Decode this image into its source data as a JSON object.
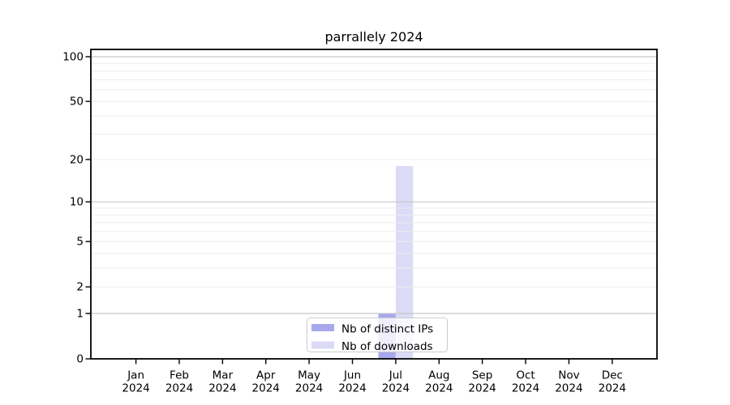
{
  "chart_data": {
    "type": "bar",
    "title": "parrallely 2024",
    "x": {
      "months": [
        "Jan",
        "Feb",
        "Mar",
        "Apr",
        "May",
        "Jun",
        "Jul",
        "Aug",
        "Sep",
        "Oct",
        "Nov",
        "Dec"
      ],
      "year": "2024"
    },
    "series": [
      {
        "name": "Nb of distinct IPs",
        "color": "#a8a8ec",
        "values": [
          0,
          0,
          0,
          0,
          0,
          0,
          1,
          0,
          0,
          0,
          0,
          0
        ]
      },
      {
        "name": "Nb of downloads",
        "color": "#dbdbf8",
        "values": [
          0,
          0,
          0,
          0,
          0,
          0,
          18,
          0,
          0,
          0,
          0,
          0
        ]
      }
    ],
    "y_axis": {
      "scale": "log1p",
      "tick_values": [
        0,
        1,
        2,
        5,
        10,
        20,
        50,
        100
      ],
      "major_grid_values": [
        1,
        10,
        100
      ],
      "minor_grid_values": [
        2,
        3,
        4,
        5,
        6,
        7,
        8,
        9,
        20,
        30,
        40,
        50,
        60,
        70,
        80,
        90
      ],
      "range_max": 100
    },
    "legend": {
      "position": "lower-center"
    },
    "colors": {
      "major_grid": "#c6c6c6",
      "minor_grid": "#ededed",
      "spine": "#000000",
      "tick": "#000000",
      "text": "#000000",
      "legend_border": "#cccccc",
      "legend_background": "#ffffff"
    }
  }
}
